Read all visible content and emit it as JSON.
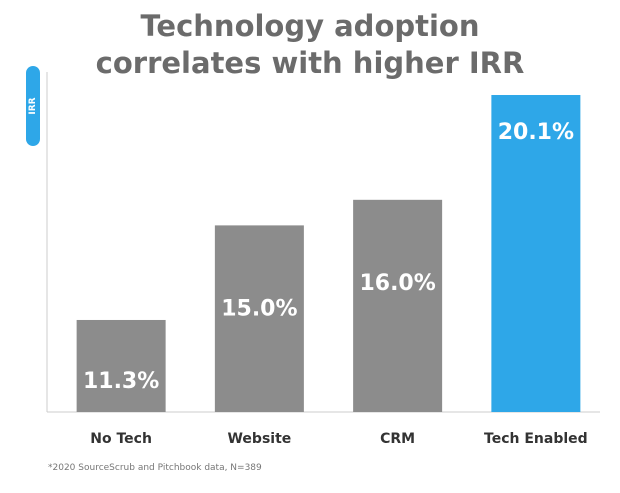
{
  "chart_data": {
    "type": "bar",
    "title_lines": [
      "Technology adoption",
      "correlates with higher IRR"
    ],
    "ylabel": "IRR",
    "xlabel": "",
    "categories": [
      "No Tech",
      "Website",
      "CRM",
      "Tech Enabled"
    ],
    "values": [
      11.3,
      15.0,
      16.0,
      20.1
    ],
    "data_labels": [
      "11.3%",
      "15.0%",
      "16.0%",
      "20.1%"
    ],
    "ylim": [
      7.7,
      21.0
    ],
    "grid": false,
    "legend": "none",
    "colors": {
      "default": "#8c8c8c",
      "highlight": "#2ea7e8",
      "highlight_index": 3
    },
    "footnote": "*2020 SourceScrub and Pitchbook data,  N=389"
  }
}
